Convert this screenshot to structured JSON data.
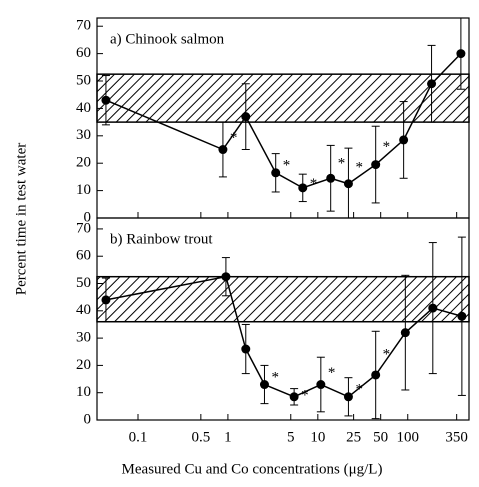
{
  "chart_data": [
    {
      "type": "line",
      "title": "a) Chinook salmon",
      "ylabel": "Percent time in test water",
      "log_x": true,
      "xlim": [
        0.035,
        480
      ],
      "ylim": [
        0,
        73
      ],
      "yticks": [
        0,
        10,
        20,
        30,
        40,
        50,
        60,
        70
      ],
      "band": [
        35,
        52.5
      ],
      "x": [
        0.044,
        0.88,
        1.58,
        3.4,
        6.8,
        13.9,
        21.9,
        44,
        90,
        184,
        390
      ],
      "series": [
        {
          "color": "#000000",
          "values": [
            43,
            25,
            37,
            16.5,
            11,
            14.5,
            12.5,
            19.5,
            28.5,
            49,
            60
          ],
          "errors": [
            9,
            10,
            12,
            7,
            5,
            12,
            13,
            14,
            14,
            14,
            13
          ],
          "annotations": [
            null,
            "*",
            null,
            "*",
            "*",
            "*",
            "*",
            "*",
            null,
            null,
            null
          ]
        }
      ]
    },
    {
      "type": "line",
      "title": "b) Rainbow trout",
      "xlabel": "Measured Cu and Co concentrations (μg/L)",
      "log_x": true,
      "xlim": [
        0.035,
        480
      ],
      "ylim": [
        0,
        74
      ],
      "yticks": [
        0,
        10,
        20,
        30,
        40,
        50,
        60,
        70
      ],
      "xticks": [
        0.1,
        0.5,
        1,
        5,
        10,
        25,
        50,
        100,
        350
      ],
      "band": [
        36,
        52.5
      ],
      "x": [
        0.044,
        0.95,
        1.58,
        2.55,
        5.45,
        10.8,
        21.9,
        44,
        94,
        190,
        400
      ],
      "series": [
        {
          "color": "#000000",
          "values": [
            44,
            52.5,
            26,
            13,
            8.5,
            13,
            8.5,
            16.5,
            32,
            41,
            38
          ],
          "errors": [
            8,
            7,
            9,
            7,
            3,
            10,
            7,
            16,
            21,
            24,
            29
          ],
          "annotations": [
            null,
            null,
            null,
            "*",
            "*",
            "*",
            "*",
            "*",
            null,
            null,
            null
          ]
        }
      ]
    }
  ]
}
